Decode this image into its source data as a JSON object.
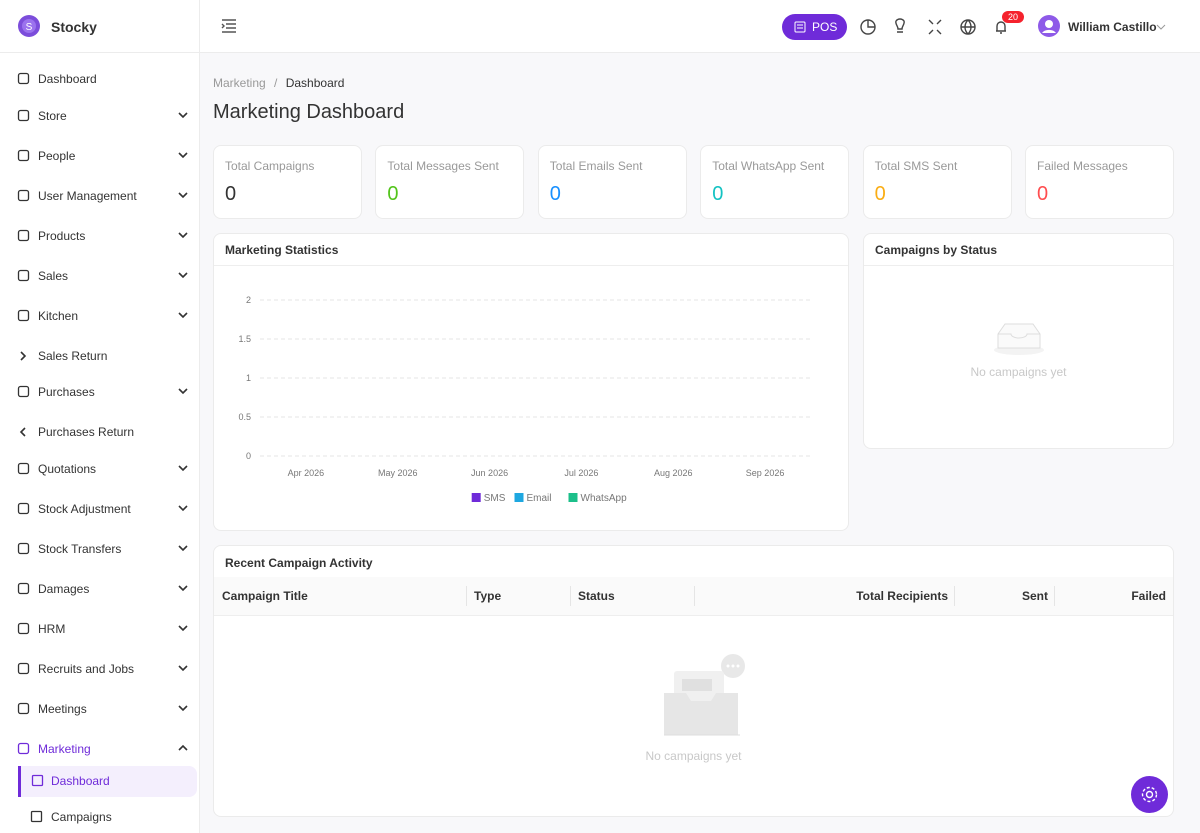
{
  "brand": "Stocky",
  "sidebar": {
    "items": [
      "Dashboard",
      "Store",
      "People",
      "User Management",
      "Products",
      "Sales",
      "Kitchen",
      "Sales Return",
      "Purchases",
      "Purchases Return",
      "Quotations",
      "Stock Adjustment",
      "Stock Transfers",
      "Damages",
      "HRM",
      "Recruits and Jobs",
      "Meetings",
      "Marketing"
    ],
    "submenu": [
      "Dashboard",
      "Campaigns"
    ]
  },
  "topbar": {
    "pos": "POS",
    "notifications": "20",
    "user": "William Castillo"
  },
  "breadcrumb": [
    "Marketing",
    "Dashboard"
  ],
  "page_title": "Marketing Dashboard",
  "stats": [
    {
      "label": "Total Campaigns",
      "value": 0,
      "color": "#333333"
    },
    {
      "label": "Total Messages Sent",
      "value": 0,
      "color": "#52c41a"
    },
    {
      "label": "Total Emails Sent",
      "value": 0,
      "color": "#1890ff"
    },
    {
      "label": "Total WhatsApp Sent",
      "value": 0,
      "color": "#13c2c2"
    },
    {
      "label": "Total SMS Sent",
      "value": 0,
      "color": "#faad14"
    },
    {
      "label": "Failed Messages",
      "value": 0,
      "color": "#ff4d4f"
    }
  ],
  "marketing_statistics": {
    "title": "Marketing Statistics",
    "chart_data": {
      "type": "line",
      "categories": [
        "Apr 2026",
        "May 2026",
        "Jun 2026",
        "Jul 2026",
        "Aug 2026",
        "Sep 2026"
      ],
      "series": [
        {
          "name": "SMS",
          "color": "#6f2bd9",
          "values": [
            null,
            null,
            null,
            null,
            null,
            null
          ]
        },
        {
          "name": "Email",
          "color": "#1ea7e0",
          "values": [
            null,
            null,
            null,
            null,
            null,
            null
          ]
        },
        {
          "name": "WhatsApp",
          "color": "#1cbf8a",
          "values": [
            null,
            null,
            null,
            null,
            null,
            null
          ]
        }
      ],
      "ylim": [
        0,
        2
      ],
      "yticks": [
        0,
        0.5,
        1,
        1.5,
        2
      ],
      "grid": true,
      "legend": "bottom"
    }
  },
  "campaigns_by_status": {
    "title": "Campaigns by Status",
    "empty": "No campaigns yet"
  },
  "recent_activity": {
    "title": "Recent Campaign Activity",
    "columns": [
      "Campaign Title",
      "Type",
      "Status",
      "Total Recipients",
      "Sent",
      "Failed"
    ],
    "empty": "No campaigns yet"
  }
}
